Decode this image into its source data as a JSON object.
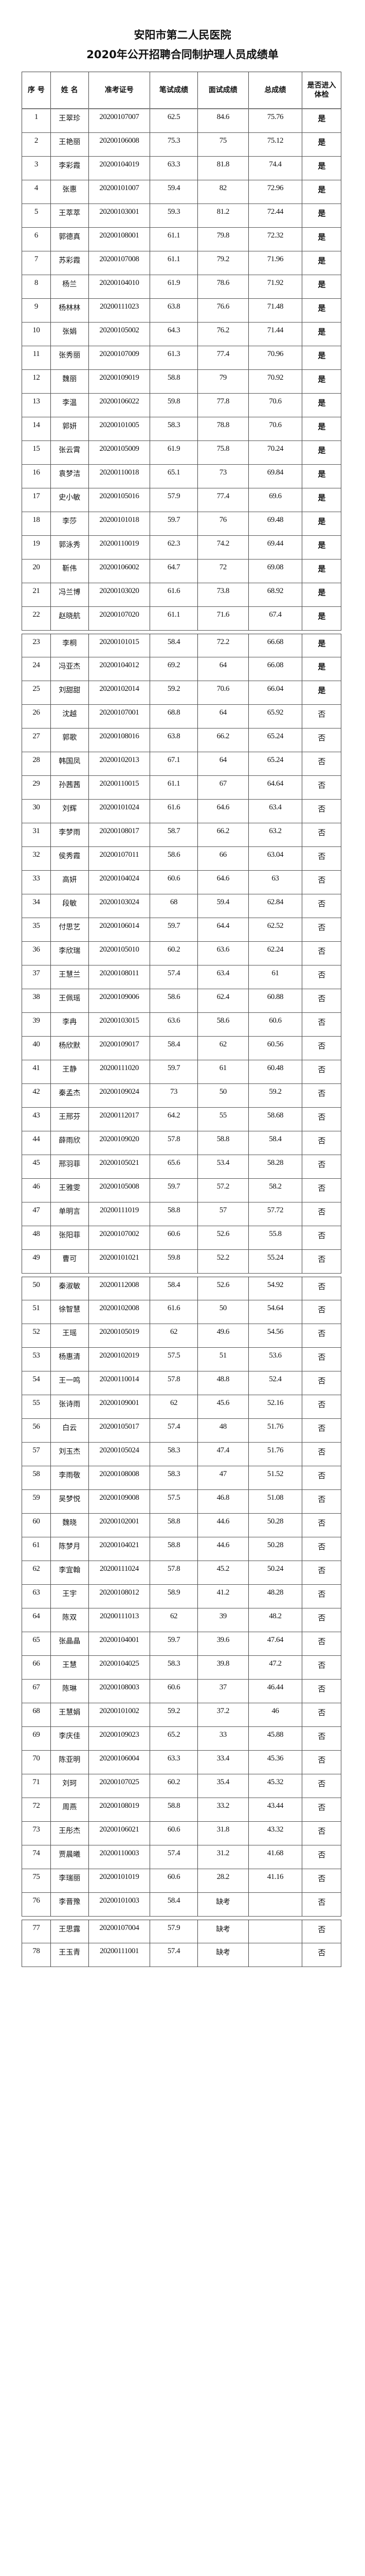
{
  "title_line1": "安阳市第二人民医院",
  "title_line2": "2020年公开招聘合同制护理人员成绩单",
  "columns": [
    "序 号",
    "姓 名",
    "准考证号",
    "笔试成绩",
    "面试成绩",
    "总成绩",
    "是否进入体检"
  ],
  "rows": [
    [
      "1",
      "王翠珍",
      "20200107007",
      "62.5",
      "84.6",
      "75.76",
      "是"
    ],
    [
      "2",
      "王艳丽",
      "20200106008",
      "75.3",
      "75",
      "75.12",
      "是"
    ],
    [
      "3",
      "李彩霞",
      "20200104019",
      "63.3",
      "81.8",
      "74.4",
      "是"
    ],
    [
      "4",
      "张惠",
      "20200101007",
      "59.4",
      "82",
      "72.96",
      "是"
    ],
    [
      "5",
      "王萃萃",
      "20200103001",
      "59.3",
      "81.2",
      "72.44",
      "是"
    ],
    [
      "6",
      "郭德真",
      "20200108001",
      "61.1",
      "79.8",
      "72.32",
      "是"
    ],
    [
      "7",
      "苏彩霞",
      "20200107008",
      "61.1",
      "79.2",
      "71.96",
      "是"
    ],
    [
      "8",
      "杨兰",
      "20200104010",
      "61.9",
      "78.6",
      "71.92",
      "是"
    ],
    [
      "9",
      "杨林林",
      "20200111023",
      "63.8",
      "76.6",
      "71.48",
      "是"
    ],
    [
      "10",
      "张娟",
      "20200105002",
      "64.3",
      "76.2",
      "71.44",
      "是"
    ],
    [
      "11",
      "张秀丽",
      "20200107009",
      "61.3",
      "77.4",
      "70.96",
      "是"
    ],
    [
      "12",
      "魏丽",
      "20200109019",
      "58.8",
      "79",
      "70.92",
      "是"
    ],
    [
      "13",
      "李温",
      "20200106022",
      "59.8",
      "77.8",
      "70.6",
      "是"
    ],
    [
      "14",
      "郭妍",
      "20200101005",
      "58.3",
      "78.8",
      "70.6",
      "是"
    ],
    [
      "15",
      "张云霄",
      "20200105009",
      "61.9",
      "75.8",
      "70.24",
      "是"
    ],
    [
      "16",
      "袁梦洁",
      "20200110018",
      "65.1",
      "73",
      "69.84",
      "是"
    ],
    [
      "17",
      "史小敏",
      "20200105016",
      "57.9",
      "77.4",
      "69.6",
      "是"
    ],
    [
      "18",
      "李莎",
      "20200101018",
      "59.7",
      "76",
      "69.48",
      "是"
    ],
    [
      "19",
      "郭泳秀",
      "20200110019",
      "62.3",
      "74.2",
      "69.44",
      "是"
    ],
    [
      "20",
      "靳伟",
      "20200106002",
      "64.7",
      "72",
      "69.08",
      "是"
    ],
    [
      "21",
      "冯兰博",
      "20200103020",
      "61.6",
      "73.8",
      "68.92",
      "是"
    ],
    [
      "22",
      "赵晓航",
      "20200107020",
      "61.1",
      "71.6",
      "67.4",
      "是"
    ],
    [
      "23",
      "李桐",
      "20200101015",
      "58.4",
      "72.2",
      "66.68",
      "是"
    ],
    [
      "24",
      "冯亚杰",
      "20200104012",
      "69.2",
      "64",
      "66.08",
      "是"
    ],
    [
      "25",
      "刘甜甜",
      "20200102014",
      "59.2",
      "70.6",
      "66.04",
      "是"
    ],
    [
      "26",
      "沈越",
      "20200107001",
      "68.8",
      "64",
      "65.92",
      "否"
    ],
    [
      "27",
      "郭歌",
      "20200108016",
      "63.8",
      "66.2",
      "65.24",
      "否"
    ],
    [
      "28",
      "韩国凤",
      "20200102013",
      "67.1",
      "64",
      "65.24",
      "否"
    ],
    [
      "29",
      "孙茜茜",
      "20200110015",
      "61.1",
      "67",
      "64.64",
      "否"
    ],
    [
      "30",
      "刘辉",
      "20200101024",
      "61.6",
      "64.6",
      "63.4",
      "否"
    ],
    [
      "31",
      "李梦雨",
      "20200108017",
      "58.7",
      "66.2",
      "63.2",
      "否"
    ],
    [
      "32",
      "侯秀霞",
      "20200107011",
      "58.6",
      "66",
      "63.04",
      "否"
    ],
    [
      "33",
      "高妍",
      "20200104024",
      "60.6",
      "64.6",
      "63",
      "否"
    ],
    [
      "34",
      "段敏",
      "20200103024",
      "68",
      "59.4",
      "62.84",
      "否"
    ],
    [
      "35",
      "付思艺",
      "20200106014",
      "59.7",
      "64.4",
      "62.52",
      "否"
    ],
    [
      "36",
      "李欣瑞",
      "20200105010",
      "60.2",
      "63.6",
      "62.24",
      "否"
    ],
    [
      "37",
      "王慧兰",
      "20200108011",
      "57.4",
      "63.4",
      "61",
      "否"
    ],
    [
      "38",
      "王佩瑶",
      "20200109006",
      "58.6",
      "62.4",
      "60.88",
      "否"
    ],
    [
      "39",
      "李冉",
      "20200103015",
      "63.6",
      "58.6",
      "60.6",
      "否"
    ],
    [
      "40",
      "杨欣默",
      "20200109017",
      "58.4",
      "62",
      "60.56",
      "否"
    ],
    [
      "41",
      "王静",
      "20200111020",
      "59.7",
      "61",
      "60.48",
      "否"
    ],
    [
      "42",
      "秦孟杰",
      "20200109024",
      "73",
      "50",
      "59.2",
      "否"
    ],
    [
      "43",
      "王邢芬",
      "20200112017",
      "64.2",
      "55",
      "58.68",
      "否"
    ],
    [
      "44",
      "薛雨欣",
      "20200109020",
      "57.8",
      "58.8",
      "58.4",
      "否"
    ],
    [
      "45",
      "邢羽菲",
      "20200105021",
      "65.6",
      "53.4",
      "58.28",
      "否"
    ],
    [
      "46",
      "王雅雯",
      "20200105008",
      "59.7",
      "57.2",
      "58.2",
      "否"
    ],
    [
      "47",
      "单明言",
      "20200111019",
      "58.8",
      "57",
      "57.72",
      "否"
    ],
    [
      "48",
      "张阳菲",
      "20200107002",
      "60.6",
      "52.6",
      "55.8",
      "否"
    ],
    [
      "49",
      "曹可",
      "20200101021",
      "59.8",
      "52.2",
      "55.24",
      "否"
    ],
    [
      "50",
      "秦淑敏",
      "20200112008",
      "58.4",
      "52.6",
      "54.92",
      "否"
    ],
    [
      "51",
      "徐智慧",
      "20200102008",
      "61.6",
      "50",
      "54.64",
      "否"
    ],
    [
      "52",
      "王瑶",
      "20200105019",
      "62",
      "49.6",
      "54.56",
      "否"
    ],
    [
      "53",
      "杨惠清",
      "20200102019",
      "57.5",
      "51",
      "53.6",
      "否"
    ],
    [
      "54",
      "王一鸣",
      "20200110014",
      "57.8",
      "48.8",
      "52.4",
      "否"
    ],
    [
      "55",
      "张诗雨",
      "20200109001",
      "62",
      "45.6",
      "52.16",
      "否"
    ],
    [
      "56",
      "白云",
      "20200105017",
      "57.4",
      "48",
      "51.76",
      "否"
    ],
    [
      "57",
      "刘玉杰",
      "20200105024",
      "58.3",
      "47.4",
      "51.76",
      "否"
    ],
    [
      "58",
      "李雨敬",
      "20200108008",
      "58.3",
      "47",
      "51.52",
      "否"
    ],
    [
      "59",
      "吴梦悦",
      "20200109008",
      "57.5",
      "46.8",
      "51.08",
      "否"
    ],
    [
      "60",
      "魏晓",
      "20200102001",
      "58.8",
      "44.6",
      "50.28",
      "否"
    ],
    [
      "61",
      "陈梦月",
      "20200104021",
      "58.8",
      "44.6",
      "50.28",
      "否"
    ],
    [
      "62",
      "李宜翰",
      "20200111024",
      "57.8",
      "45.2",
      "50.24",
      "否"
    ],
    [
      "63",
      "王宇",
      "20200108012",
      "58.9",
      "41.2",
      "48.28",
      "否"
    ],
    [
      "64",
      "陈双",
      "20200111013",
      "62",
      "39",
      "48.2",
      "否"
    ],
    [
      "65",
      "张晶晶",
      "20200104001",
      "59.7",
      "39.6",
      "47.64",
      "否"
    ],
    [
      "66",
      "王慧",
      "20200104025",
      "58.3",
      "39.8",
      "47.2",
      "否"
    ],
    [
      "67",
      "陈琳",
      "20200108003",
      "60.6",
      "37",
      "46.44",
      "否"
    ],
    [
      "68",
      "王慧娟",
      "20200101002",
      "59.2",
      "37.2",
      "46",
      "否"
    ],
    [
      "69",
      "李庆佳",
      "20200109023",
      "65.2",
      "33",
      "45.88",
      "否"
    ],
    [
      "70",
      "陈亚明",
      "20200106004",
      "63.3",
      "33.4",
      "45.36",
      "否"
    ],
    [
      "71",
      "刘珂",
      "20200107025",
      "60.2",
      "35.4",
      "45.32",
      "否"
    ],
    [
      "72",
      "周燕",
      "20200108019",
      "58.8",
      "33.2",
      "43.44",
      "否"
    ],
    [
      "73",
      "王彤杰",
      "20200106021",
      "60.6",
      "31.8",
      "43.32",
      "否"
    ],
    [
      "74",
      "贾晨曦",
      "20200110003",
      "57.4",
      "31.2",
      "41.68",
      "否"
    ],
    [
      "75",
      "李瑞丽",
      "20200101019",
      "60.6",
      "28.2",
      "41.16",
      "否"
    ],
    [
      "76",
      "李晋豫",
      "20200101003",
      "58.4",
      "缺考",
      "",
      "否"
    ],
    [
      "77",
      "王思露",
      "20200107004",
      "57.9",
      "缺考",
      "",
      "否"
    ],
    [
      "78",
      "王玉青",
      "20200111001",
      "57.4",
      "缺考",
      "",
      "否"
    ]
  ]
}
